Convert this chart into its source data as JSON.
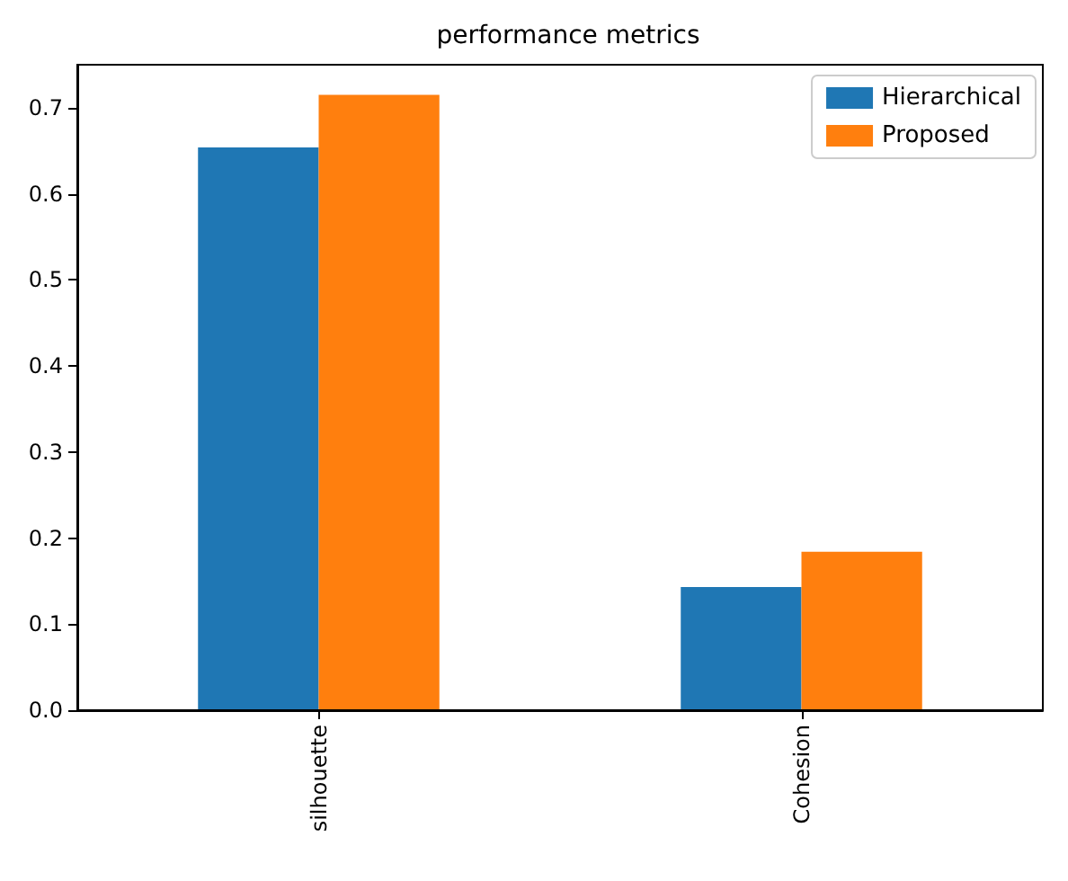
{
  "chart_data": {
    "type": "bar",
    "title": "performance metrics",
    "categories": [
      "silhouette",
      "Cohesion"
    ],
    "series": [
      {
        "name": "Hierarchical",
        "color": "#1f77b4",
        "values": [
          0.654,
          0.143
        ]
      },
      {
        "name": "Proposed",
        "color": "#ff7f0e",
        "values": [
          0.715,
          0.184
        ]
      }
    ],
    "ylim": [
      0,
      0.75
    ],
    "yticks": [
      {
        "value": 0,
        "label": "0.0"
      },
      0.1,
      0.2,
      0.3,
      0.4,
      0.5,
      0.6,
      0.7
    ],
    "grid": false,
    "legend": "top right"
  }
}
